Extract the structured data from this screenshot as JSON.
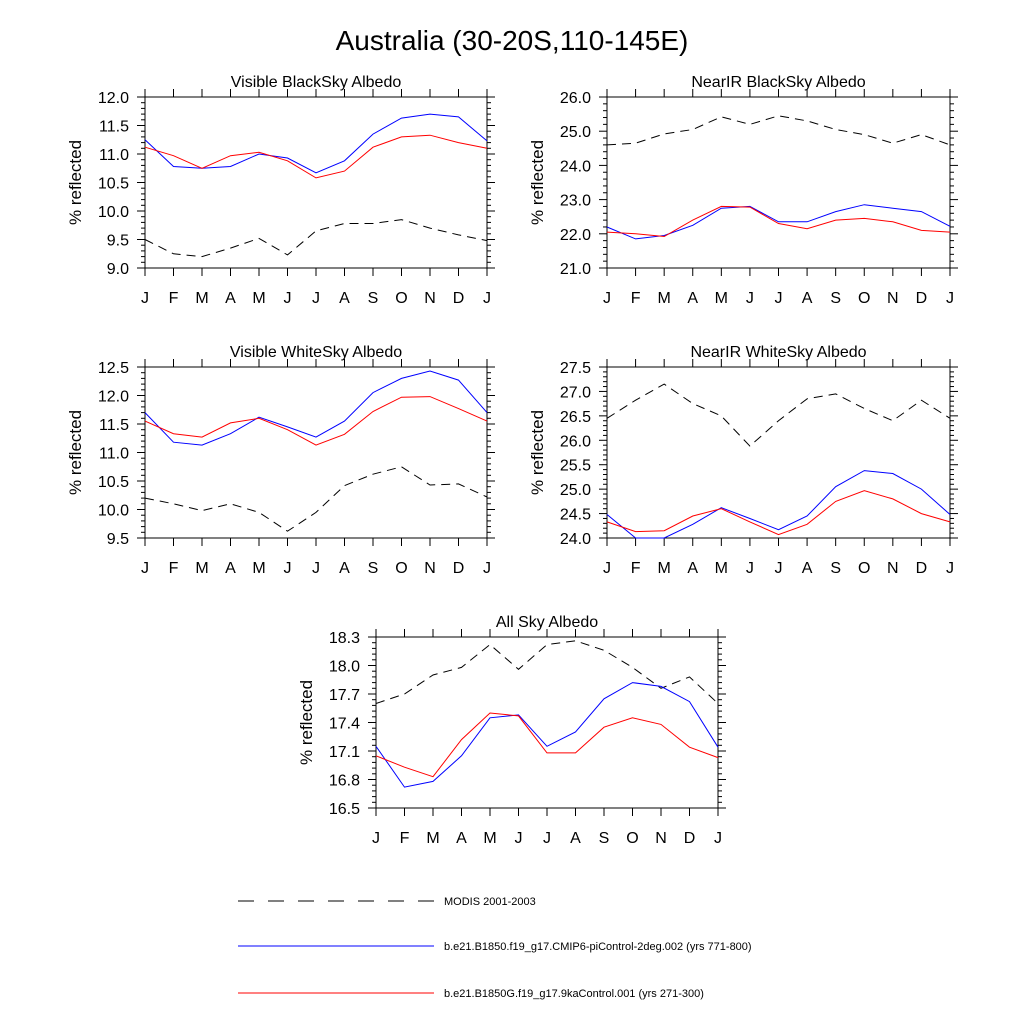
{
  "figure": {
    "title": "Australia (30-20S,110-145E)"
  },
  "chart_data": [
    {
      "type": "line",
      "title": "Visible BlackSky Albedo",
      "ylabel": "% reflected",
      "xlabel": "",
      "ylim": [
        9.0,
        12.0
      ],
      "yticks": [
        "9.0",
        "9.5",
        "10.0",
        "10.5",
        "11.0",
        "11.5",
        "12.0"
      ],
      "categories": [
        "J",
        "F",
        "M",
        "A",
        "M",
        "J",
        "J",
        "A",
        "S",
        "O",
        "N",
        "D",
        "J"
      ],
      "series": [
        {
          "name": "MODIS 2001-2003",
          "color": "#000000",
          "dash": true,
          "values": [
            9.5,
            9.25,
            9.2,
            9.35,
            9.52,
            9.23,
            9.65,
            9.78,
            9.78,
            9.85,
            9.7,
            9.58,
            9.48
          ]
        },
        {
          "name": "b.e21.B1850.f19_g17.CMIP6-piControl-2deg.002 (yrs 771-800)",
          "color": "#0000ff",
          "dash": false,
          "values": [
            11.25,
            10.78,
            10.75,
            10.78,
            11.0,
            10.93,
            10.67,
            10.88,
            11.35,
            11.63,
            11.7,
            11.65,
            11.23
          ]
        },
        {
          "name": "b.e21.B1850G.f19_g17.9kaControl.001 (yrs 271-300)",
          "color": "#ff0000",
          "dash": false,
          "values": [
            11.12,
            10.97,
            10.75,
            10.97,
            11.03,
            10.88,
            10.58,
            10.7,
            11.12,
            11.3,
            11.33,
            11.2,
            11.1
          ]
        }
      ]
    },
    {
      "type": "line",
      "title": "NearIR BlackSky Albedo",
      "ylabel": "% reflected",
      "xlabel": "",
      "ylim": [
        21.0,
        26.0
      ],
      "yticks": [
        "21.0",
        "22.0",
        "23.0",
        "24.0",
        "25.0",
        "26.0"
      ],
      "categories": [
        "J",
        "F",
        "M",
        "A",
        "M",
        "J",
        "J",
        "A",
        "S",
        "O",
        "N",
        "D",
        "J"
      ],
      "series": [
        {
          "name": "MODIS 2001-2003",
          "color": "#000000",
          "dash": true,
          "values": [
            24.6,
            24.65,
            24.92,
            25.05,
            25.42,
            25.2,
            25.45,
            25.3,
            25.05,
            24.9,
            24.65,
            24.9,
            24.6
          ]
        },
        {
          "name": "b.e21.B1850.f19_g17.CMIP6-piControl-2deg.002 (yrs 771-800)",
          "color": "#0000ff",
          "dash": false,
          "values": [
            22.2,
            21.85,
            21.95,
            22.25,
            22.75,
            22.8,
            22.35,
            22.35,
            22.65,
            22.85,
            22.75,
            22.65,
            22.22
          ]
        },
        {
          "name": "b.e21.B1850G.f19_g17.9kaControl.001 (yrs 271-300)",
          "color": "#ff0000",
          "dash": false,
          "values": [
            22.05,
            22.0,
            21.92,
            22.4,
            22.8,
            22.78,
            22.3,
            22.15,
            22.4,
            22.45,
            22.35,
            22.1,
            22.05
          ]
        }
      ]
    },
    {
      "type": "line",
      "title": "Visible WhiteSky Albedo",
      "ylabel": "% reflected",
      "xlabel": "",
      "ylim": [
        9.5,
        12.5
      ],
      "yticks": [
        "9.5",
        "10.0",
        "10.5",
        "11.0",
        "11.5",
        "12.0",
        "12.5"
      ],
      "categories": [
        "J",
        "F",
        "M",
        "A",
        "M",
        "J",
        "J",
        "A",
        "S",
        "O",
        "N",
        "D",
        "J"
      ],
      "series": [
        {
          "name": "MODIS 2001-2003",
          "color": "#000000",
          "dash": true,
          "values": [
            10.2,
            10.1,
            9.98,
            10.1,
            9.95,
            9.62,
            9.95,
            10.42,
            10.62,
            10.75,
            10.43,
            10.45,
            10.22
          ]
        },
        {
          "name": "b.e21.B1850.f19_g17.CMIP6-piControl-2deg.002 (yrs 771-800)",
          "color": "#0000ff",
          "dash": false,
          "values": [
            11.7,
            11.18,
            11.13,
            11.33,
            11.62,
            11.45,
            11.27,
            11.55,
            12.05,
            12.3,
            12.43,
            12.27,
            11.7
          ]
        },
        {
          "name": "b.e21.B1850G.f19_g17.9kaControl.001 (yrs 271-300)",
          "color": "#ff0000",
          "dash": false,
          "values": [
            11.55,
            11.33,
            11.27,
            11.52,
            11.6,
            11.4,
            11.13,
            11.32,
            11.72,
            11.97,
            11.98,
            11.77,
            11.55
          ]
        }
      ]
    },
    {
      "type": "line",
      "title": "NearIR WhiteSky Albedo",
      "ylabel": "% reflected",
      "xlabel": "",
      "ylim": [
        24.0,
        27.5
      ],
      "yticks": [
        "24.0",
        "24.5",
        "25.0",
        "25.5",
        "26.0",
        "26.5",
        "27.0",
        "27.5"
      ],
      "categories": [
        "J",
        "F",
        "M",
        "A",
        "M",
        "J",
        "J",
        "A",
        "S",
        "O",
        "N",
        "D",
        "J"
      ],
      "series": [
        {
          "name": "MODIS 2001-2003",
          "color": "#000000",
          "dash": true,
          "values": [
            26.45,
            26.82,
            27.15,
            26.75,
            26.5,
            25.88,
            26.4,
            26.85,
            26.95,
            26.65,
            26.4,
            26.82,
            26.45
          ]
        },
        {
          "name": "b.e21.B1850.f19_g17.CMIP6-piControl-2deg.002 (yrs 771-800)",
          "color": "#0000ff",
          "dash": false,
          "values": [
            24.48,
            24.0,
            24.0,
            24.28,
            24.62,
            24.4,
            24.17,
            24.45,
            25.05,
            25.38,
            25.32,
            25.0,
            24.48
          ]
        },
        {
          "name": "b.e21.B1850G.f19_g17.9kaControl.001 (yrs 271-300)",
          "color": "#ff0000",
          "dash": false,
          "values": [
            24.33,
            24.13,
            24.15,
            24.45,
            24.6,
            24.33,
            24.07,
            24.28,
            24.75,
            24.97,
            24.8,
            24.5,
            24.33
          ]
        }
      ]
    },
    {
      "type": "line",
      "title": "All Sky Albedo",
      "ylabel": "% reflected",
      "xlabel": "",
      "ylim": [
        16.5,
        18.3
      ],
      "yticks": [
        "16.5",
        "16.8",
        "17.1",
        "17.4",
        "17.7",
        "18.0",
        "18.3"
      ],
      "categories": [
        "J",
        "F",
        "M",
        "A",
        "M",
        "J",
        "J",
        "A",
        "S",
        "O",
        "N",
        "D",
        "J"
      ],
      "series": [
        {
          "name": "MODIS 2001-2003",
          "color": "#000000",
          "dash": true,
          "values": [
            17.6,
            17.7,
            17.9,
            17.98,
            18.22,
            17.96,
            18.22,
            18.26,
            18.16,
            17.98,
            17.76,
            17.88,
            17.6
          ]
        },
        {
          "name": "b.e21.B1850.f19_g17.CMIP6-piControl-2deg.002 (yrs 771-800)",
          "color": "#0000ff",
          "dash": false,
          "values": [
            17.15,
            16.72,
            16.78,
            17.05,
            17.45,
            17.48,
            17.15,
            17.3,
            17.65,
            17.82,
            17.78,
            17.62,
            17.14
          ]
        },
        {
          "name": "b.e21.B1850G.f19_g17.9kaControl.001 (yrs 271-300)",
          "color": "#ff0000",
          "dash": false,
          "values": [
            17.05,
            16.93,
            16.83,
            17.22,
            17.5,
            17.47,
            17.08,
            17.08,
            17.35,
            17.45,
            17.38,
            17.14,
            17.03
          ]
        }
      ]
    }
  ],
  "legend": {
    "placement": "bottom",
    "items": [
      {
        "label": "MODIS 2001-2003",
        "color": "#000000",
        "dash": true
      },
      {
        "label": "b.e21.B1850.f19_g17.CMIP6-piControl-2deg.002 (yrs 771-800)",
        "color": "#0000ff",
        "dash": false
      },
      {
        "label": "b.e21.B1850G.f19_g17.9kaControl.001 (yrs 271-300)",
        "color": "#ff0000",
        "dash": false
      }
    ]
  }
}
